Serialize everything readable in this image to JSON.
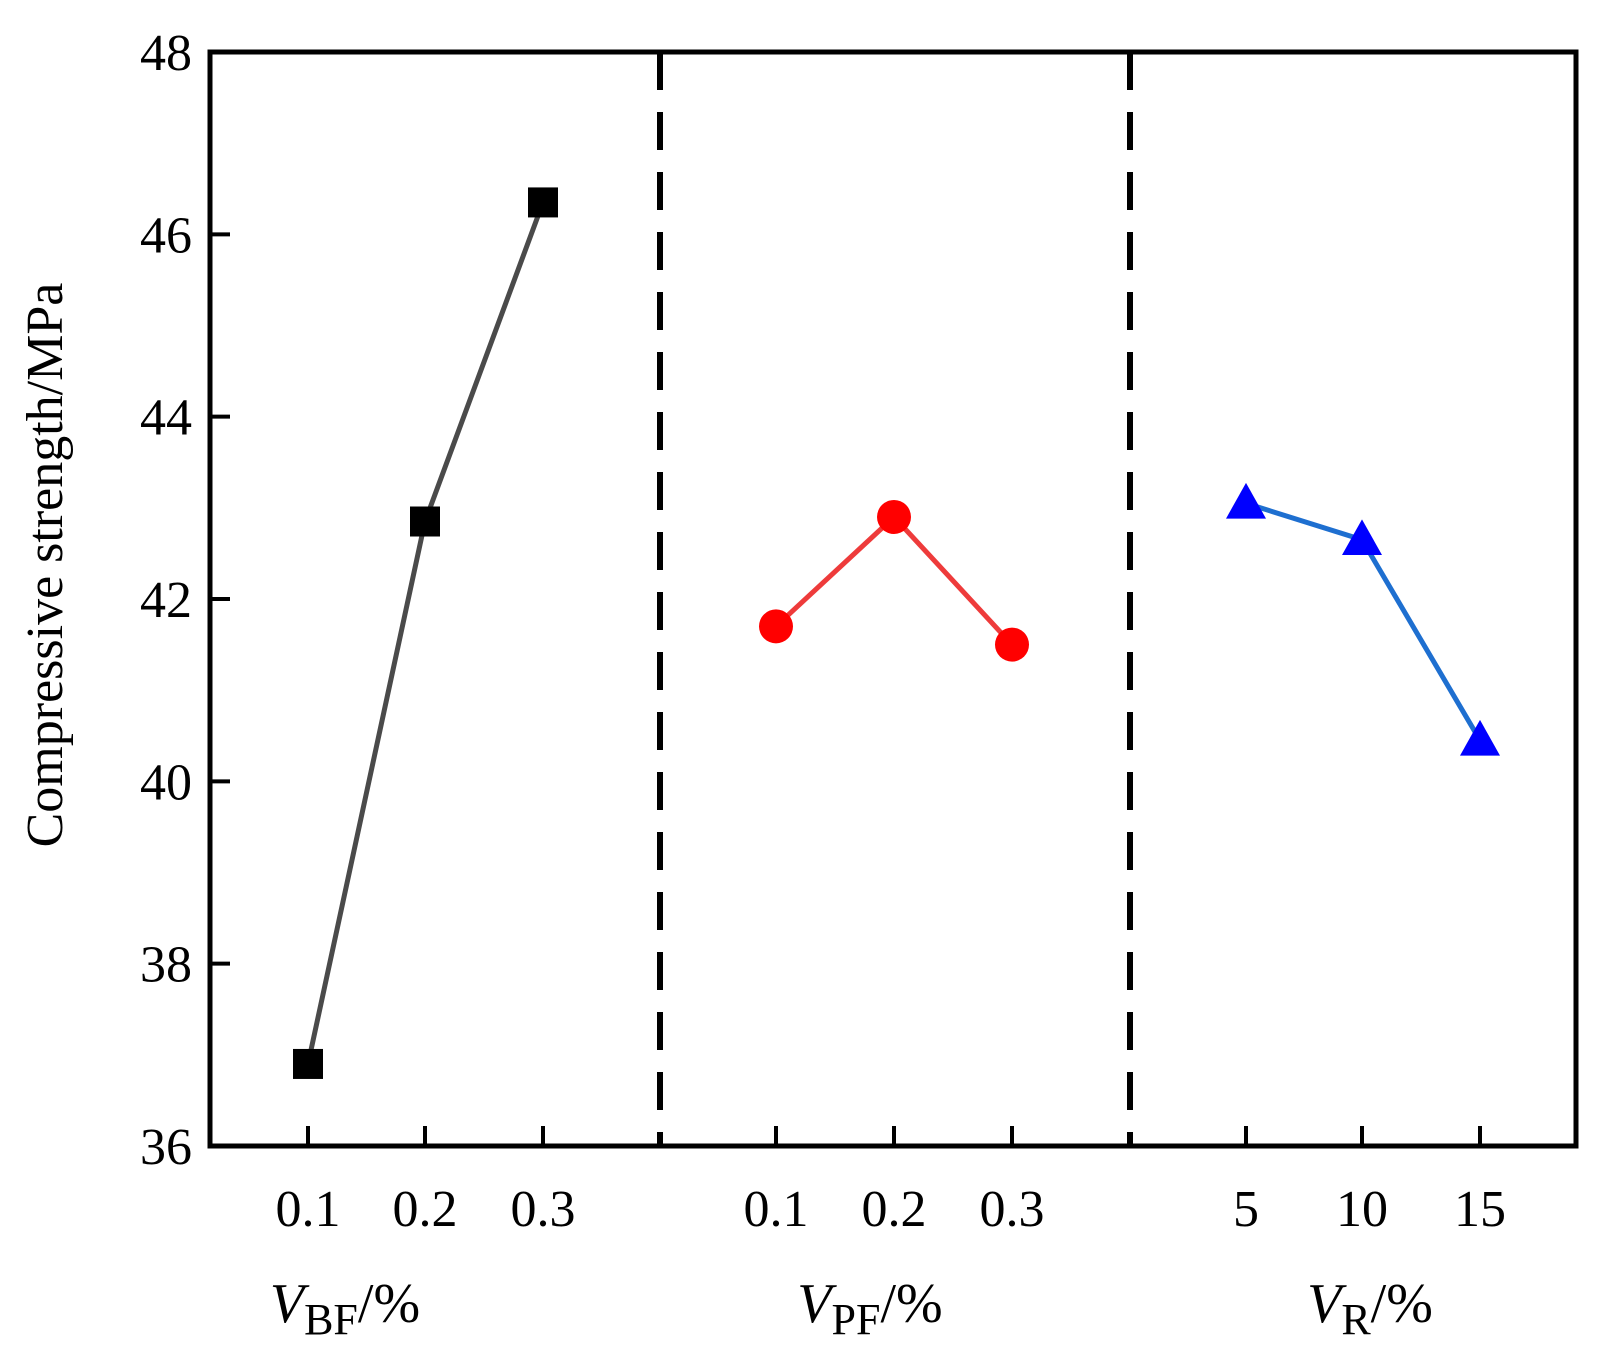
{
  "chart_data": {
    "type": "line",
    "title": "",
    "ylabel": "Compressive strength/MPa",
    "ylim": [
      36,
      48
    ],
    "yticks": [
      36,
      38,
      40,
      42,
      44,
      46,
      48
    ],
    "grid": false,
    "legend": "none",
    "series": [
      {
        "name": "BF",
        "group_label": {
          "main": "V",
          "sub": "BF",
          "suffix": "/%"
        },
        "categories": [
          "0.1",
          "0.2",
          "0.3"
        ],
        "values": [
          36.9,
          42.85,
          46.35
        ],
        "color": "#4a4a4a",
        "marker_color": "#000000",
        "marker": "square"
      },
      {
        "name": "PF",
        "group_label": {
          "main": "V",
          "sub": "PF",
          "suffix": "/%"
        },
        "categories": [
          "0.1",
          "0.2",
          "0.3"
        ],
        "values": [
          41.7,
          42.9,
          41.5
        ],
        "color": "#ee3b3b",
        "marker_color": "#ff0000",
        "marker": "circle"
      },
      {
        "name": "R",
        "group_label": {
          "main": "V",
          "sub": "R",
          "suffix": "/%"
        },
        "categories": [
          "5",
          "10",
          "15"
        ],
        "values": [
          43.05,
          42.65,
          40.45
        ],
        "color": "#1e6fd0",
        "marker_color": "#0000ff",
        "marker": "triangle"
      }
    ]
  }
}
